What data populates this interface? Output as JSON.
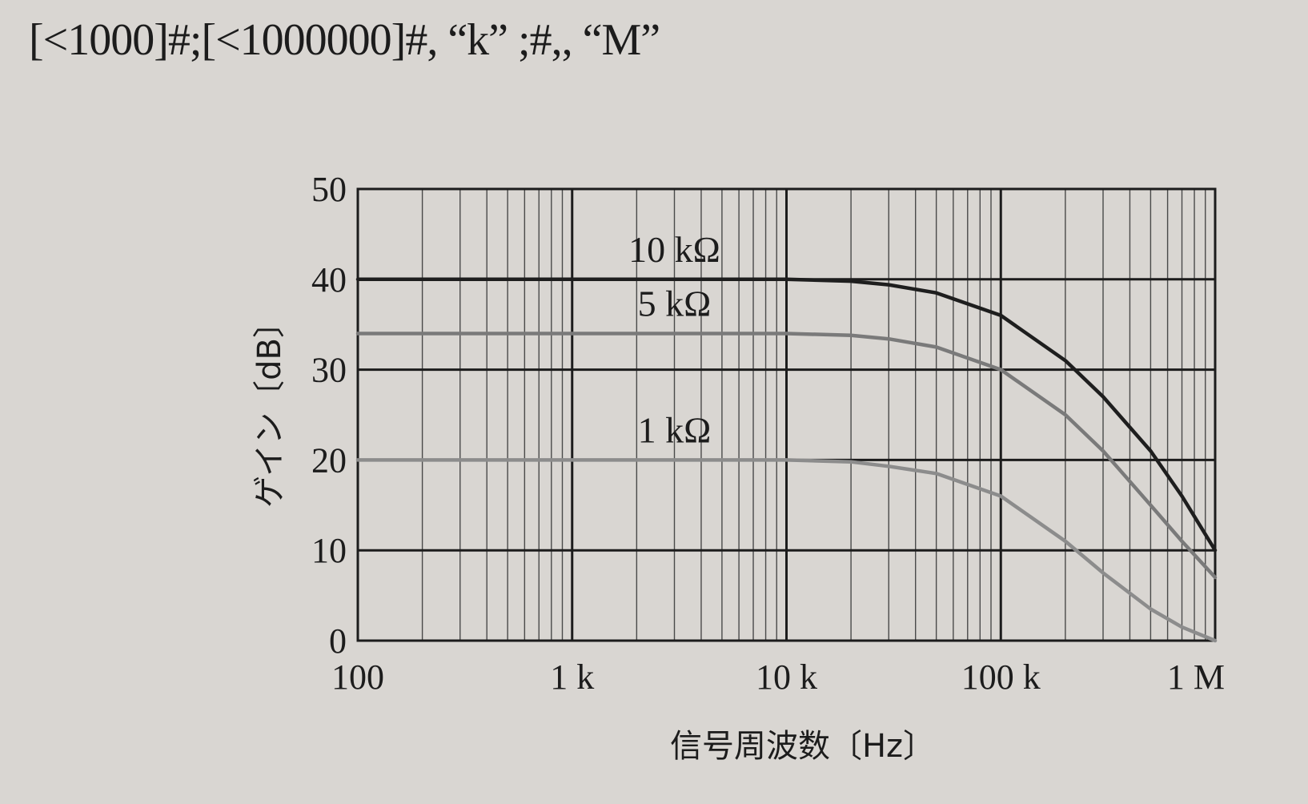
{
  "header": {
    "format_text": "[<1000]#;[<1000000]#, “k” ;#,, “M”"
  },
  "chart_data": {
    "type": "line",
    "xscale": "log",
    "xlim": [
      100,
      1000000
    ],
    "ylim": [
      0,
      50
    ],
    "grid": true,
    "xlabel": "信号周波数〔Hz〕",
    "ylabel": "ゲイン〔dB〕",
    "x_ticks": [
      {
        "value": 100,
        "label": "100"
      },
      {
        "value": 1000,
        "label": "1 k"
      },
      {
        "value": 10000,
        "label": "10 k"
      },
      {
        "value": 100000,
        "label": "100 k"
      },
      {
        "value": 1000000,
        "label": "1 M"
      }
    ],
    "y_ticks": [
      {
        "value": 0,
        "label": "0"
      },
      {
        "value": 10,
        "label": "10"
      },
      {
        "value": 20,
        "label": "20"
      },
      {
        "value": 30,
        "label": "30"
      },
      {
        "value": 40,
        "label": "40"
      },
      {
        "value": 50,
        "label": "50"
      }
    ],
    "series": [
      {
        "name": "10 kΩ",
        "color": "#1e1e1e",
        "x": [
          100,
          1000,
          10000,
          20000,
          30000,
          50000,
          100000,
          200000,
          300000,
          500000,
          700000,
          1000000
        ],
        "y": [
          40,
          40,
          40,
          39.8,
          39.4,
          38.5,
          36,
          31,
          27,
          21,
          16,
          10
        ]
      },
      {
        "name": "5 kΩ",
        "color": "#7a7a7a",
        "x": [
          100,
          1000,
          10000,
          20000,
          30000,
          50000,
          100000,
          200000,
          300000,
          500000,
          700000,
          1000000
        ],
        "y": [
          34,
          34,
          34,
          33.8,
          33.4,
          32.5,
          30,
          25,
          21,
          15,
          11,
          7
        ]
      },
      {
        "name": "1 kΩ",
        "color": "#8c8c8c",
        "x": [
          100,
          1000,
          10000,
          20000,
          30000,
          50000,
          100000,
          200000,
          300000,
          500000,
          700000,
          1000000
        ],
        "y": [
          20,
          20,
          20,
          19.8,
          19.3,
          18.5,
          16,
          11,
          7.5,
          3.5,
          1.5,
          0
        ]
      }
    ]
  }
}
